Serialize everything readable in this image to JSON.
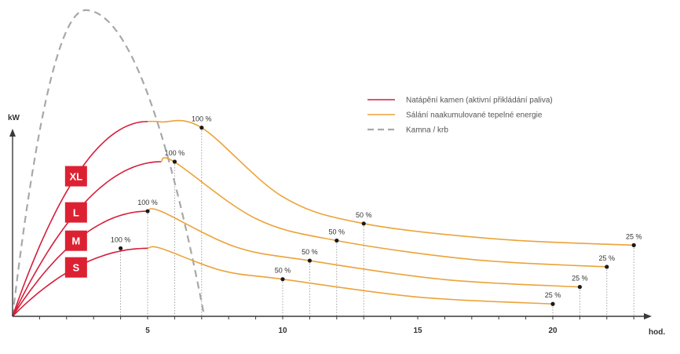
{
  "chart_data": {
    "type": "line",
    "title": "",
    "ylabel": "kW",
    "xlabel": "hod.",
    "xlim": [
      0,
      24
    ],
    "ylim": [
      0,
      10
    ],
    "x_ticks": [
      5,
      10,
      15,
      20
    ],
    "colors": {
      "heating": "#d41f3c",
      "radiation": "#eba33a",
      "stove": "#a8a8a8",
      "badge": "#dc2232"
    },
    "legend": {
      "position": "top-right",
      "items": [
        {
          "label": "Natápění kamen (aktivní přikládání paliva)",
          "style": "solid",
          "color": "#d41f3c"
        },
        {
          "label": "Sálání naakumulované tepelné energie",
          "style": "solid",
          "color": "#eba33a"
        },
        {
          "label": "Kamna / krb",
          "style": "dashed",
          "color": "#a8a8a8"
        }
      ]
    },
    "stove_curve": {
      "name": "Kamna / krb",
      "x_start": 0,
      "x_peak": 2.7,
      "x_end": 7.1,
      "y_peak": 9.9
    },
    "series": [
      {
        "name": "XL",
        "peak_x": 5,
        "peak_y": 6.3,
        "marks": [
          {
            "x": 7,
            "y": 6.1,
            "label": "100 %"
          },
          {
            "x": 13,
            "y": 3.0,
            "label": "50 %"
          },
          {
            "x": 23,
            "y": 2.3,
            "label": "25 %"
          }
        ]
      },
      {
        "name": "L",
        "peak_x": 5.5,
        "peak_y": 5.0,
        "marks": [
          {
            "x": 6,
            "y": 5.0,
            "label": "100 %"
          },
          {
            "x": 12,
            "y": 2.45,
            "label": "50 %"
          },
          {
            "x": 22,
            "y": 1.6,
            "label": "25 %"
          }
        ]
      },
      {
        "name": "M",
        "peak_x": 5,
        "peak_y": 3.4,
        "marks": [
          {
            "x": 5,
            "y": 3.4,
            "label": "100 %"
          },
          {
            "x": 11,
            "y": 1.8,
            "label": "50 %"
          },
          {
            "x": 21,
            "y": 0.95,
            "label": "25 %"
          }
        ]
      },
      {
        "name": "S",
        "peak_x": 5,
        "peak_y": 2.2,
        "marks": [
          {
            "x": 4,
            "y": 2.2,
            "label": "100 %"
          },
          {
            "x": 10,
            "y": 1.2,
            "label": "50 %"
          },
          {
            "x": 20,
            "y": 0.4,
            "label": "25 %"
          }
        ]
      }
    ]
  }
}
